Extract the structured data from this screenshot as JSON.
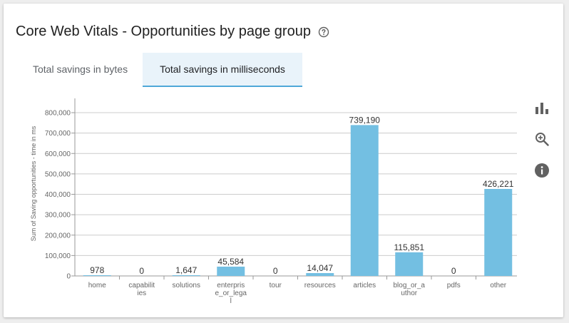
{
  "card": {
    "title": "Core Web Vitals - Opportunities by page group",
    "help_icon": "help-circle-icon"
  },
  "tabs": [
    {
      "label": "Total savings in bytes",
      "active": false
    },
    {
      "label": "Total savings in milliseconds",
      "active": true
    }
  ],
  "side_icons": [
    "bar-chart-icon",
    "zoom-in-icon",
    "info-icon"
  ],
  "colors": {
    "bar": "#73bfe2",
    "grid": "#cccccc",
    "axis_text": "#666666",
    "label_text": "#333333",
    "tab_active_bg": "#e9f3fa",
    "tab_underline": "#4fa8d8",
    "icon": "#616161"
  },
  "chart_data": {
    "type": "bar",
    "title": "",
    "xlabel": "",
    "ylabel": "Sum of Saving opportunities - time in ms",
    "categories": [
      [
        "home"
      ],
      [
        "capabilit",
        "ies"
      ],
      [
        "solutions"
      ],
      [
        "enterpris",
        "e_or_lega",
        "l"
      ],
      [
        "tour"
      ],
      [
        "resources"
      ],
      [
        "articles"
      ],
      [
        "blog_or_a",
        "uthor"
      ],
      [
        "pdfs"
      ],
      [
        "other"
      ]
    ],
    "values": [
      978,
      0,
      1647,
      45584,
      0,
      14047,
      739190,
      115851,
      0,
      426221
    ],
    "value_labels": [
      "978",
      "0",
      "1,647",
      "45,584",
      "0",
      "14,047",
      "739,190",
      "115,851",
      "0",
      "426,221"
    ],
    "ylim": [
      0,
      800000
    ],
    "yticks": [
      0,
      100000,
      200000,
      300000,
      400000,
      500000,
      600000,
      700000,
      800000
    ],
    "ytick_labels": [
      "0",
      "100,000",
      "200,000",
      "300,000",
      "400,000",
      "500,000",
      "600,000",
      "700,000",
      "800,000"
    ],
    "grid": true,
    "legend": "none"
  }
}
